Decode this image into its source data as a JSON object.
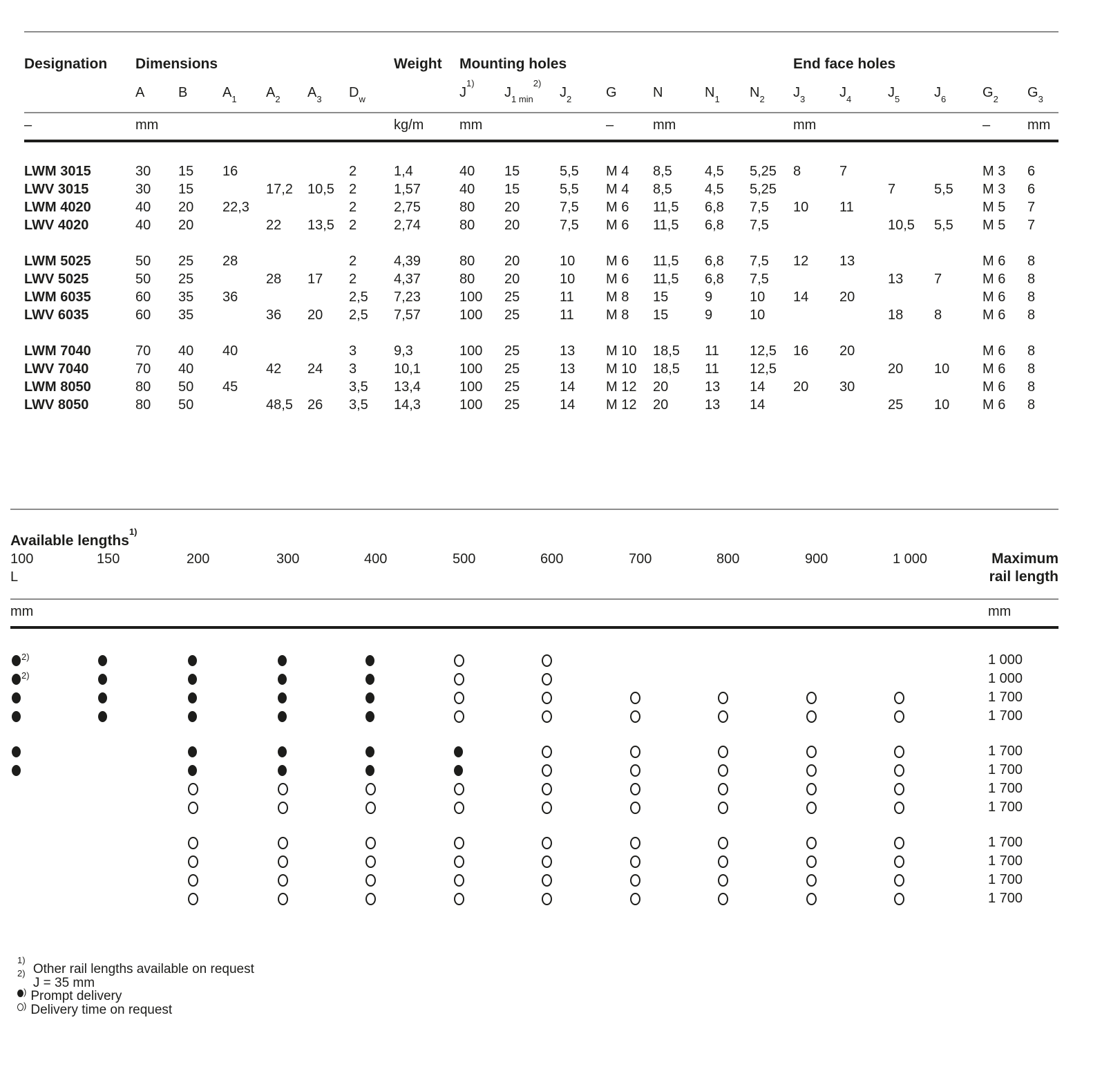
{
  "table1": {
    "group_headers": {
      "designation": "Designation",
      "dimensions": "Dimensions",
      "weight": "Weight",
      "mounting_holes": "Mounting holes",
      "end_face_holes": "End face holes"
    },
    "cols": [
      {
        "b": "A",
        "s": "",
        "p": ""
      },
      {
        "b": "B",
        "s": "",
        "p": ""
      },
      {
        "b": "A",
        "s": "1",
        "p": ""
      },
      {
        "b": "A",
        "s": "2",
        "p": ""
      },
      {
        "b": "A",
        "s": "3",
        "p": ""
      },
      {
        "b": "D",
        "s": "w",
        "p": ""
      },
      {
        "b": "",
        "s": "",
        "p": ""
      },
      {
        "b": "J",
        "s": "",
        "p": "1)"
      },
      {
        "b": "J",
        "s": "1 min",
        "p": "2)"
      },
      {
        "b": "J",
        "s": "2",
        "p": ""
      },
      {
        "b": "G",
        "s": "",
        "p": ""
      },
      {
        "b": "N",
        "s": "",
        "p": ""
      },
      {
        "b": "N",
        "s": "1",
        "p": ""
      },
      {
        "b": "N",
        "s": "2",
        "p": ""
      },
      {
        "b": "J",
        "s": "3",
        "p": ""
      },
      {
        "b": "J",
        "s": "4",
        "p": ""
      },
      {
        "b": "J",
        "s": "5",
        "p": ""
      },
      {
        "b": "J",
        "s": "6",
        "p": ""
      },
      {
        "b": "G",
        "s": "2",
        "p": ""
      },
      {
        "b": "G",
        "s": "3",
        "p": ""
      }
    ],
    "units": {
      "designation": "–",
      "dimensions": "mm",
      "weight": "kg/m",
      "mounting": "mm",
      "g": "–",
      "n": "mm",
      "endface": "mm",
      "g2": "–",
      "g3": "mm"
    },
    "rows": [
      {
        "designation": "LWM 3015",
        "group_start": false,
        "values": [
          "30",
          "15",
          "16",
          "",
          "",
          "2",
          "1,4",
          "40",
          "15",
          "5,5",
          "M 4",
          "8,5",
          "4,5",
          "5,25",
          "8",
          "7",
          "",
          "",
          "M 3",
          "6"
        ]
      },
      {
        "designation": "LWV 3015",
        "group_start": false,
        "values": [
          "30",
          "15",
          "",
          "17,2",
          "10,5",
          "2",
          "1,57",
          "40",
          "15",
          "5,5",
          "M 4",
          "8,5",
          "4,5",
          "5,25",
          "",
          "",
          "7",
          "5,5",
          "M 3",
          "6"
        ]
      },
      {
        "designation": "LWM 4020",
        "group_start": false,
        "values": [
          "40",
          "20",
          "22,3",
          "",
          "",
          "2",
          "2,75",
          "80",
          "20",
          "7,5",
          "M 6",
          "11,5",
          "6,8",
          "7,5",
          "10",
          "11",
          "",
          "",
          "M 5",
          "7"
        ]
      },
      {
        "designation": "LWV 4020",
        "group_start": false,
        "values": [
          "40",
          "20",
          "",
          "22",
          "13,5",
          "2",
          "2,74",
          "80",
          "20",
          "7,5",
          "M 6",
          "11,5",
          "6,8",
          "7,5",
          "",
          "",
          "10,5",
          "5,5",
          "M 5",
          "7"
        ]
      },
      {
        "designation": "LWM 5025",
        "group_start": true,
        "values": [
          "50",
          "25",
          "28",
          "",
          "",
          "2",
          "4,39",
          "80",
          "20",
          "10",
          "M 6",
          "11,5",
          "6,8",
          "7,5",
          "12",
          "13",
          "",
          "",
          "M 6",
          "8"
        ]
      },
      {
        "designation": "LWV 5025",
        "group_start": false,
        "values": [
          "50",
          "25",
          "",
          "28",
          "17",
          "2",
          "4,37",
          "80",
          "20",
          "10",
          "M 6",
          "11,5",
          "6,8",
          "7,5",
          "",
          "",
          "13",
          "7",
          "M 6",
          "8"
        ]
      },
      {
        "designation": "LWM 6035",
        "group_start": false,
        "values": [
          "60",
          "35",
          "36",
          "",
          "",
          "2,5",
          "7,23",
          "100",
          "25",
          "11",
          "M 8",
          "15",
          "9",
          "10",
          "14",
          "20",
          "",
          "",
          "M 6",
          "8"
        ]
      },
      {
        "designation": "LWV 6035",
        "group_start": false,
        "values": [
          "60",
          "35",
          "",
          "36",
          "20",
          "2,5",
          "7,57",
          "100",
          "25",
          "11",
          "M 8",
          "15",
          "9",
          "10",
          "",
          "",
          "18",
          "8",
          "M 6",
          "8"
        ]
      },
      {
        "designation": "LWM 7040",
        "group_start": true,
        "values": [
          "70",
          "40",
          "40",
          "",
          "",
          "3",
          "9,3",
          "100",
          "25",
          "13",
          "M 10",
          "18,5",
          "11",
          "12,5",
          "16",
          "20",
          "",
          "",
          "M 6",
          "8"
        ]
      },
      {
        "designation": "LWV 7040",
        "group_start": false,
        "values": [
          "70",
          "40",
          "",
          "42",
          "24",
          "3",
          "10,1",
          "100",
          "25",
          "13",
          "M 10",
          "18,5",
          "11",
          "12,5",
          "",
          "",
          "20",
          "10",
          "M 6",
          "8"
        ]
      },
      {
        "designation": "LWM 8050",
        "group_start": false,
        "values": [
          "80",
          "50",
          "45",
          "",
          "",
          "3,5",
          "13,4",
          "100",
          "25",
          "14",
          "M 12",
          "20",
          "13",
          "14",
          "20",
          "30",
          "",
          "",
          "M 6",
          "8"
        ]
      },
      {
        "designation": "LWV 8050",
        "group_start": false,
        "values": [
          "80",
          "50",
          "",
          "48,5",
          "26",
          "3,5",
          "14,3",
          "100",
          "25",
          "14",
          "M 12",
          "20",
          "13",
          "14",
          "",
          "",
          "25",
          "10",
          "M 6",
          "8"
        ]
      }
    ]
  },
  "table2": {
    "title": "Available lengths",
    "title_sup": "1)",
    "row_label": "L",
    "lengths": [
      "100",
      "150",
      "200",
      "300",
      "400",
      "500",
      "600",
      "700",
      "800",
      "900",
      "1 000"
    ],
    "max_header": [
      "Maximum",
      "rail length"
    ],
    "unit_left": "mm",
    "unit_right": "mm",
    "dot_sup": "2)",
    "legend": {
      "filled": "Prompt delivery",
      "open": "Delivery time on request"
    },
    "rows": [
      {
        "group_start": false,
        "dots": [
          "F2",
          "F",
          "F",
          "F",
          "F",
          "O",
          "O",
          "",
          "",
          "",
          ""
        ],
        "max": "1 000"
      },
      {
        "group_start": false,
        "dots": [
          "F2",
          "F",
          "F",
          "F",
          "F",
          "O",
          "O",
          "",
          "",
          "",
          ""
        ],
        "max": "1 000"
      },
      {
        "group_start": false,
        "dots": [
          "F",
          "F",
          "F",
          "F",
          "F",
          "O",
          "O",
          "O",
          "O",
          "O",
          "O"
        ],
        "max": "1 700"
      },
      {
        "group_start": false,
        "dots": [
          "F",
          "F",
          "F",
          "F",
          "F",
          "O",
          "O",
          "O",
          "O",
          "O",
          "O"
        ],
        "max": "1 700"
      },
      {
        "group_start": true,
        "dots": [
          "F",
          "",
          "F",
          "F",
          "F",
          "F",
          "O",
          "O",
          "O",
          "O",
          "O"
        ],
        "max": "1 700"
      },
      {
        "group_start": false,
        "dots": [
          "F",
          "",
          "F",
          "F",
          "F",
          "F",
          "O",
          "O",
          "O",
          "O",
          "O"
        ],
        "max": "1 700"
      },
      {
        "group_start": false,
        "dots": [
          "",
          "",
          "O",
          "O",
          "O",
          "O",
          "O",
          "O",
          "O",
          "O",
          "O"
        ],
        "max": "1 700"
      },
      {
        "group_start": false,
        "dots": [
          "",
          "",
          "O",
          "O",
          "O",
          "O",
          "O",
          "O",
          "O",
          "O",
          "O"
        ],
        "max": "1 700"
      },
      {
        "group_start": true,
        "dots": [
          "",
          "",
          "O",
          "O",
          "O",
          "O",
          "O",
          "O",
          "O",
          "O",
          "O"
        ],
        "max": "1 700"
      },
      {
        "group_start": false,
        "dots": [
          "",
          "",
          "O",
          "O",
          "O",
          "O",
          "O",
          "O",
          "O",
          "O",
          "O"
        ],
        "max": "1 700"
      },
      {
        "group_start": false,
        "dots": [
          "",
          "",
          "O",
          "O",
          "O",
          "O",
          "O",
          "O",
          "O",
          "O",
          "O"
        ],
        "max": "1 700"
      },
      {
        "group_start": false,
        "dots": [
          "",
          "",
          "O",
          "O",
          "O",
          "O",
          "O",
          "O",
          "O",
          "O",
          "O"
        ],
        "max": "1 700"
      }
    ]
  },
  "footnotes": [
    {
      "marker": "1)",
      "text": "Other rail lengths available on request"
    },
    {
      "marker": "2)",
      "text": "J = 35 mm"
    },
    {
      "marker": "dot-filled",
      "paren": ")",
      "text": "Prompt delivery"
    },
    {
      "marker": "dot-open",
      "paren": ")",
      "text": "Delivery time on request"
    }
  ]
}
